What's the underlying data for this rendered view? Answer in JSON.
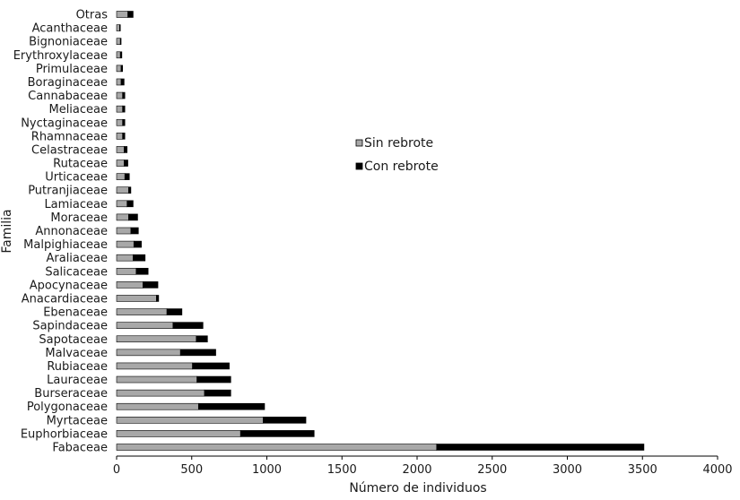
{
  "chart_data": {
    "type": "bar",
    "orientation": "horizontal",
    "stacked": true,
    "categories": [
      "Otras",
      "Acanthaceae",
      "Bignoniaceae",
      "Erythroxylaceae",
      "Primulaceae",
      "Boraginaceae",
      "Cannabaceae",
      "Meliaceae",
      "Nyctaginaceae",
      "Rhamnaceae",
      "Celastraceae",
      "Rutaceae",
      "Urticaceae",
      "Putranjiaceae",
      "Lamiaceae",
      "Moraceae",
      "Annonaceae",
      "Malpighiaceae",
      "Araliaceae",
      "Salicaceae",
      "Apocynaceae",
      "Anacardiaceae",
      "Ebenaceae",
      "Sapindaceae",
      "Sapotaceae",
      "Malvaceae",
      "Rubiaceae",
      "Lauraceae",
      "Burseraceae",
      "Polygonaceae",
      "Myrtaceae",
      "Euphorbiaceae",
      "Fabaceae"
    ],
    "series": [
      {
        "name": "Sin rebrote",
        "color": "#a8a8a8",
        "values": [
          75,
          20,
          25,
          25,
          30,
          30,
          40,
          40,
          40,
          40,
          50,
          50,
          55,
          80,
          70,
          80,
          95,
          115,
          110,
          130,
          175,
          265,
          335,
          375,
          530,
          425,
          505,
          535,
          585,
          545,
          975,
          825,
          2130
        ]
      },
      {
        "name": "Con rebrote",
        "color": "#000000",
        "values": [
          35,
          5,
          5,
          10,
          10,
          20,
          15,
          15,
          15,
          15,
          20,
          25,
          30,
          15,
          40,
          60,
          50,
          50,
          80,
          80,
          100,
          15,
          100,
          200,
          75,
          235,
          245,
          225,
          175,
          440,
          285,
          490,
          1380
        ]
      }
    ],
    "xlabel": "Número de individuos",
    "ylabel": "Familia",
    "xlim": [
      0,
      4000
    ],
    "xticks": [
      0,
      500,
      1000,
      1500,
      2000,
      2500,
      3000,
      3500,
      4000
    ],
    "grid": false,
    "legend_position": "right-middle"
  }
}
